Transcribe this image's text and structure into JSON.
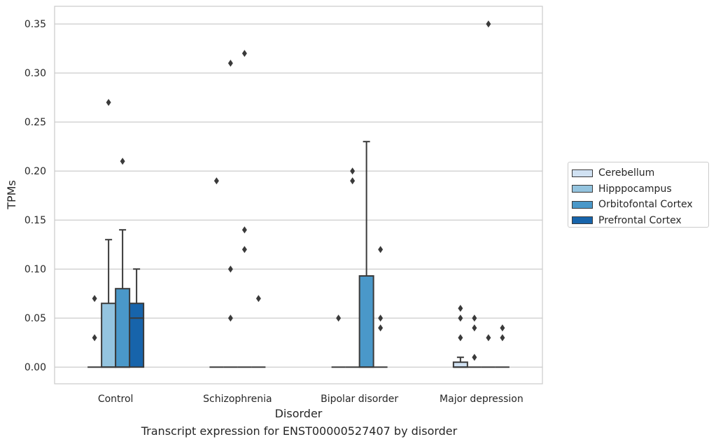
{
  "chart_data": {
    "type": "boxplot",
    "xlabel": "Disorder",
    "ylabel": "TPMs",
    "ylim": [
      -0.017,
      0.368
    ],
    "yticks": [
      0.0,
      0.05,
      0.1,
      0.15,
      0.2,
      0.25,
      0.3,
      0.35
    ],
    "ytick_labels": [
      "0.00",
      "0.05",
      "0.10",
      "0.15",
      "0.20",
      "0.25",
      "0.30",
      "0.35"
    ],
    "grid": "horizontal",
    "legend_position": "right",
    "categories": [
      "Control",
      "Schizophrenia",
      "Bipolar disorder",
      "Major depression"
    ],
    "series": [
      {
        "name": "Cerebellum",
        "color": "#d0e1f2",
        "boxes": [
          {
            "q1": 0,
            "median": 0,
            "q3": 0,
            "whisker_low": 0,
            "whisker_high": 0,
            "outliers": [
              0.03,
              0.07
            ]
          },
          {
            "q1": 0,
            "median": 0,
            "q3": 0,
            "whisker_low": 0,
            "whisker_high": 0,
            "outliers": [
              0.19
            ]
          },
          {
            "q1": 0,
            "median": 0,
            "q3": 0,
            "whisker_low": 0,
            "whisker_high": 0,
            "outliers": [
              0.05
            ]
          },
          {
            "q1": 0,
            "median": 0,
            "q3": 0.005,
            "whisker_low": 0,
            "whisker_high": 0.01,
            "outliers": [
              0.03,
              0.05,
              0.06
            ]
          }
        ]
      },
      {
        "name": "Hipppocampus",
        "color": "#94c4df",
        "boxes": [
          {
            "q1": 0,
            "median": 0,
            "q3": 0.065,
            "whisker_low": 0,
            "whisker_high": 0.13,
            "outliers": [
              0.27
            ]
          },
          {
            "q1": 0,
            "median": 0,
            "q3": 0,
            "whisker_low": 0,
            "whisker_high": 0,
            "outliers": [
              0.05,
              0.1,
              0.31
            ]
          },
          {
            "q1": 0,
            "median": 0,
            "q3": 0,
            "whisker_low": 0,
            "whisker_high": 0,
            "outliers": [
              0.19,
              0.2
            ]
          },
          {
            "q1": 0,
            "median": 0,
            "q3": 0,
            "whisker_low": 0,
            "whisker_high": 0,
            "outliers": [
              0.01,
              0.04,
              0.05
            ]
          }
        ]
      },
      {
        "name": "Orbitofontal Cortex",
        "color": "#4a98c9",
        "boxes": [
          {
            "q1": 0,
            "median": 0,
            "q3": 0.08,
            "whisker_low": 0,
            "whisker_high": 0.14,
            "outliers": [
              0.21
            ]
          },
          {
            "q1": 0,
            "median": 0,
            "q3": 0,
            "whisker_low": 0,
            "whisker_high": 0,
            "outliers": [
              0.12,
              0.14,
              0.32
            ]
          },
          {
            "q1": 0,
            "median": 0,
            "q3": 0.093,
            "whisker_low": 0,
            "whisker_high": 0.23,
            "outliers": []
          },
          {
            "q1": 0,
            "median": 0,
            "q3": 0,
            "whisker_low": 0,
            "whisker_high": 0,
            "outliers": [
              0.03,
              0.35
            ]
          }
        ]
      },
      {
        "name": "Prefrontal Cortex",
        "color": "#1764ab",
        "boxes": [
          {
            "q1": 0,
            "median": 0.05,
            "q3": 0.065,
            "whisker_low": 0,
            "whisker_high": 0.1,
            "outliers": []
          },
          {
            "q1": 0,
            "median": 0,
            "q3": 0,
            "whisker_low": 0,
            "whisker_high": 0,
            "outliers": [
              0.07
            ]
          },
          {
            "q1": 0,
            "median": 0,
            "q3": 0,
            "whisker_low": 0,
            "whisker_high": 0,
            "outliers": [
              0.04,
              0.05,
              0.12
            ]
          },
          {
            "q1": 0,
            "median": 0,
            "q3": 0,
            "whisker_low": 0,
            "whisker_high": 0,
            "outliers": [
              0.03,
              0.04
            ]
          }
        ]
      }
    ]
  },
  "caption": "Transcript expression for ENST00000527407 by disorder"
}
